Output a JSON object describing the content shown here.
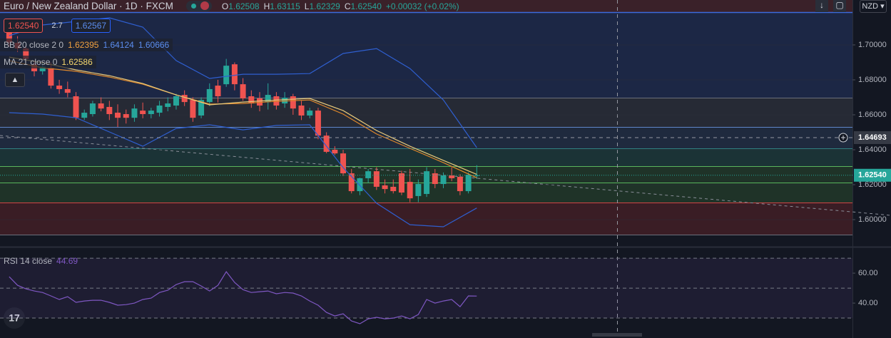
{
  "header": {
    "symbol": "Euro / New Zealand Dollar",
    "interval": "1D",
    "exchange": "FXCM",
    "ohlc": [
      {
        "key": "O",
        "value": "1.62508"
      },
      {
        "key": "H",
        "value": "1.63115"
      },
      {
        "key": "L",
        "value": "1.62329"
      },
      {
        "key": "C",
        "value": "1.62540"
      }
    ],
    "change": "+0.00032 (+0.02%)",
    "sell": "1.62540",
    "spread": "2.7",
    "buy": "1.62567",
    "currency": "NZD"
  },
  "chart_data": [
    {
      "type": "candlestick",
      "up_color": "#26a69a",
      "down_color": "#ef5350",
      "xlim": [
        -1.1,
        101
      ],
      "ylim": [
        1.5849,
        1.7257
      ],
      "yticks": [
        {
          "value": 1.6,
          "label": "1.60000"
        },
        {
          "value": 1.62,
          "label": "1.62000"
        },
        {
          "value": 1.64,
          "label": "1.64000"
        },
        {
          "value": 1.66,
          "label": "1.66000"
        },
        {
          "value": 1.68,
          "label": "1.68000"
        },
        {
          "value": 1.7,
          "label": "1.70000"
        }
      ],
      "grid": true,
      "open": [
        1.7094,
        1.7012,
        1.698,
        1.6889,
        1.6849,
        1.6869,
        1.6767,
        1.6747,
        1.6706,
        1.6583,
        1.6604,
        1.6665,
        1.6645,
        1.6612,
        1.6604,
        1.6583,
        1.6624,
        1.6604,
        1.6612,
        1.6645,
        1.6653,
        1.6714,
        1.6685,
        1.6596,
        1.6673,
        1.6767,
        1.6775,
        1.6889,
        1.6775,
        1.6706,
        1.6694,
        1.6673,
        1.6706,
        1.6665,
        1.6706,
        1.6653,
        1.6596,
        1.6624,
        1.6481,
        1.64,
        1.6379,
        1.6265,
        1.6163,
        1.6237,
        1.6277,
        1.6196,
        1.6188,
        1.6265,
        1.6216,
        1.6135,
        1.6147,
        1.6265,
        1.6204,
        1.6253,
        1.6245,
        1.6163,
        1.62508
      ],
      "high": [
        1.712,
        1.705,
        1.7,
        1.691,
        1.69,
        1.69,
        1.68,
        1.679,
        1.673,
        1.663,
        1.668,
        1.67,
        1.668,
        1.666,
        1.663,
        1.666,
        1.667,
        1.664,
        1.668,
        1.67,
        1.672,
        1.674,
        1.67,
        1.67,
        1.678,
        1.68,
        1.692,
        1.69,
        1.681,
        1.674,
        1.673,
        1.678,
        1.673,
        1.673,
        1.672,
        1.668,
        1.664,
        1.664,
        1.65,
        1.642,
        1.64,
        1.629,
        1.624,
        1.629,
        1.63,
        1.623,
        1.623,
        1.628,
        1.629,
        1.623,
        1.63,
        1.629,
        1.627,
        1.63,
        1.626,
        1.627,
        1.63115
      ],
      "low": [
        1.699,
        1.696,
        1.69,
        1.682,
        1.683,
        1.675,
        1.672,
        1.67,
        1.657,
        1.657,
        1.659,
        1.662,
        1.657,
        1.653,
        1.655,
        1.656,
        1.658,
        1.658,
        1.659,
        1.662,
        1.663,
        1.665,
        1.656,
        1.658,
        1.665,
        1.667,
        1.676,
        1.674,
        1.668,
        1.664,
        1.662,
        1.663,
        1.663,
        1.664,
        1.66,
        1.657,
        1.658,
        1.646,
        1.638,
        1.637,
        1.625,
        1.615,
        1.614,
        1.621,
        1.617,
        1.615,
        1.615,
        1.614,
        1.61,
        1.61,
        1.613,
        1.618,
        1.618,
        1.622,
        1.614,
        1.615,
        1.62329
      ],
      "close": [
        1.7012,
        1.698,
        1.692,
        1.6849,
        1.6875,
        1.6767,
        1.6747,
        1.6726,
        1.6583,
        1.6612,
        1.6665,
        1.6636,
        1.6604,
        1.6583,
        1.6583,
        1.6636,
        1.6604,
        1.6624,
        1.6653,
        1.6665,
        1.6706,
        1.6673,
        1.6583,
        1.6685,
        1.6747,
        1.6706,
        1.6881,
        1.6775,
        1.6694,
        1.6665,
        1.6653,
        1.6714,
        1.6653,
        1.6698,
        1.6636,
        1.6596,
        1.6624,
        1.6481,
        1.6388,
        1.6379,
        1.6265,
        1.6163,
        1.6237,
        1.6277,
        1.6188,
        1.6175,
        1.6163,
        1.6155,
        1.6122,
        1.6204,
        1.6277,
        1.6204,
        1.6253,
        1.6237,
        1.6163,
        1.6257,
        1.6254
      ],
      "overlays": [
        {
          "color": "#2f5fd0",
          "x": [
            0,
            4,
            8,
            12,
            16,
            20,
            24,
            28,
            32,
            36,
            40,
            44,
            48,
            52,
            56
          ],
          "values": [
            1.7053,
            1.7114,
            1.7134,
            1.7155,
            1.7102,
            1.691,
            1.6808,
            1.6832,
            1.6832,
            1.6836,
            1.6951,
            1.6979,
            1.6865,
            1.6685,
            1.64124
          ]
        },
        {
          "color": "#e0882b",
          "x": [
            0,
            4,
            8,
            12,
            16,
            20,
            24,
            28,
            32,
            36,
            40,
            44,
            48,
            52,
            56
          ],
          "values": [
            1.691,
            1.6869,
            1.6849,
            1.6816,
            1.6775,
            1.6714,
            1.6661,
            1.6665,
            1.6677,
            1.6685,
            1.6604,
            1.649,
            1.6408,
            1.6326,
            1.62395
          ]
        },
        {
          "color": "#2f5fd0",
          "x": [
            0,
            4,
            8,
            12,
            16,
            20,
            24,
            28,
            32,
            36,
            40,
            44,
            48,
            52,
            56
          ],
          "values": [
            1.6612,
            1.6604,
            1.6583,
            1.6502,
            1.642,
            1.6522,
            1.6543,
            1.6514,
            1.6539,
            1.6543,
            1.6298,
            1.6094,
            1.5971,
            1.5959,
            1.60666
          ]
        },
        {
          "color": "#e8c97a",
          "x": [
            0,
            4,
            8,
            12,
            16,
            20,
            24,
            28,
            32,
            36,
            40,
            44,
            48,
            52,
            56
          ],
          "values": [
            1.693,
            1.6898,
            1.6857,
            1.6824,
            1.6779,
            1.6714,
            1.6657,
            1.6673,
            1.6685,
            1.6694,
            1.6624,
            1.651,
            1.642,
            1.6339,
            1.62586
          ]
        }
      ],
      "indicators": [
        {
          "label": "BB 20 close 2 0",
          "readouts": [
            {
              "text": "1.62395",
              "color": "#f0a040"
            },
            {
              "text": "1.64124",
              "color": "#5b8def"
            },
            {
              "text": "1.60666",
              "color": "#5b8def"
            }
          ]
        },
        {
          "label": "MA 21 close 0",
          "readouts": [
            {
              "text": "1.62586",
              "color": "#f5d76e"
            }
          ]
        }
      ],
      "crosshair_price": 1.64693,
      "last_price": {
        "value": 1.6254,
        "label": "1.62540"
      }
    },
    {
      "type": "line",
      "label": "RSI 14 close",
      "color": "#7e57c2",
      "xlim": [
        -1.1,
        101
      ],
      "ylim": [
        18.6,
        76.7
      ],
      "yticks": [
        {
          "value": 40,
          "label": "40.00"
        },
        {
          "value": 60,
          "label": "60.00"
        }
      ],
      "levels": [
        70,
        50,
        30
      ],
      "values": [
        57.6,
        51.9,
        49.5,
        48.1,
        47.1,
        44.8,
        42.4,
        44.3,
        40.5,
        41.4,
        41.9,
        41.9,
        40.5,
        38.6,
        39.0,
        40.0,
        42.4,
        43.3,
        47.1,
        48.6,
        52.4,
        54.3,
        54.3,
        51.4,
        48.1,
        51.9,
        61.0,
        53.8,
        49.0,
        47.1,
        47.6,
        48.1,
        46.2,
        47.1,
        46.7,
        44.8,
        41.4,
        38.6,
        33.8,
        31.4,
        32.9,
        28.1,
        26.2,
        29.5,
        30.5,
        29.5,
        30.0,
        31.4,
        29.5,
        32.4,
        42.4,
        40.0,
        41.4,
        42.4,
        37.6,
        44.8,
        44.69
      ]
    }
  ]
}
